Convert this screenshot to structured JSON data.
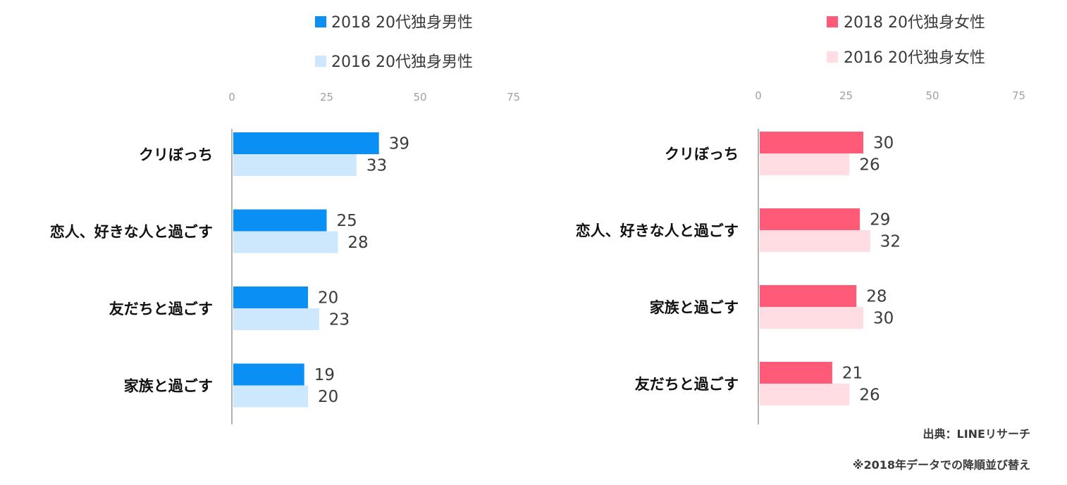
{
  "footer": {
    "source": "出典：LINEリサーチ",
    "note": "※2018年データでの降順並び替え"
  },
  "chart_data": [
    {
      "type": "bar",
      "orientation": "horizontal",
      "xlim": [
        0,
        75
      ],
      "ticks": [
        "0",
        "25",
        "50",
        "75"
      ],
      "grid": false,
      "legend_position": "top",
      "categories": [
        "クリぼっち",
        "恋人、好きな人と過ごす",
        "友だちと過ごす",
        "家族と過ごす"
      ],
      "series": [
        {
          "name": "2018 20代独身男性",
          "color": "#0a8ff5",
          "values": [
            39,
            25,
            20,
            19
          ]
        },
        {
          "name": "2016 20代独身男性",
          "color": "#cde8fc",
          "values": [
            33,
            28,
            23,
            20
          ]
        }
      ]
    },
    {
      "type": "bar",
      "orientation": "horizontal",
      "xlim": [
        0,
        75
      ],
      "ticks": [
        "0",
        "25",
        "50",
        "75"
      ],
      "grid": false,
      "legend_position": "top",
      "categories": [
        "クリぼっち",
        "恋人、好きな人と過ごす",
        "家族と過ごす",
        "友だちと過ごす"
      ],
      "series": [
        {
          "name": "2018 20代独身女性",
          "color": "#ff5b79",
          "values": [
            30,
            29,
            28,
            21
          ]
        },
        {
          "name": "2016 20代独身女性",
          "color": "#ffdde3",
          "values": [
            26,
            32,
            30,
            26
          ]
        }
      ]
    }
  ]
}
